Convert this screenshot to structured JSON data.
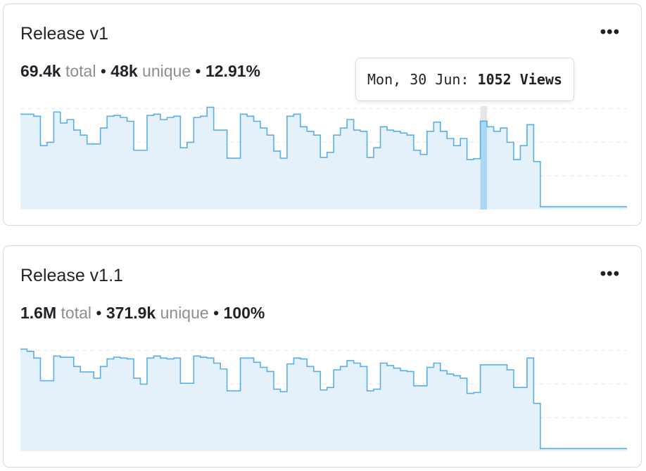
{
  "cards": [
    {
      "title": "Release v1",
      "stats": [
        {
          "value": "69.4k",
          "label": "total"
        },
        {
          "value": "48k",
          "label": "unique"
        },
        {
          "value": "12.91%"
        }
      ],
      "chart_data": {
        "type": "step-area",
        "color": "#5aaee8",
        "values": [
          1134,
          1134,
          1110,
          760,
          800,
          1160,
          1030,
          1070,
          945,
          885,
          780,
          780,
          970,
          1110,
          1120,
          1095,
          1050,
          705,
          705,
          1120,
          1134,
          1070,
          1095,
          1110,
          735,
          800,
          1095,
          1110,
          1217,
          945,
          945,
          610,
          610,
          1134,
          1110,
          1050,
          970,
          885,
          695,
          610,
          1110,
          1134,
          985,
          930,
          885,
          620,
          680,
          885,
          970,
          1070,
          945,
          930,
          620,
          735,
          985,
          945,
          930,
          910,
          885,
          705,
          655,
          930,
          1040,
          930,
          845,
          760,
          845,
          595,
          605,
          1052,
          985,
          930,
          970,
          800,
          595,
          760,
          1010,
          570,
          33,
          33,
          33,
          33,
          33,
          33,
          33,
          33,
          33,
          33,
          33,
          33,
          33
        ],
        "ylim": [
          0,
          1230
        ],
        "yticks": [
          400,
          800,
          1200
        ],
        "grid": true,
        "tooltip": {
          "date": "Mon, 30 Jun:",
          "value": 1052,
          "value_label": "1052 Views"
        }
      }
    },
    {
      "title": "Release v1.1",
      "stats": [
        {
          "value": "1.6M",
          "label": "total"
        },
        {
          "value": "371.9k",
          "label": "unique"
        },
        {
          "value": "100%"
        }
      ],
      "chart_data": {
        "type": "step-area",
        "color": "#5aaee8",
        "values": [
          1217,
          1190,
          1110,
          840,
          840,
          1134,
          1120,
          1120,
          1010,
          945,
          945,
          870,
          1010,
          1100,
          1120,
          1110,
          1100,
          870,
          800,
          1110,
          1134,
          1110,
          1100,
          1110,
          810,
          810,
          1134,
          1120,
          1110,
          1050,
          980,
          720,
          720,
          1110,
          1110,
          1060,
          1000,
          950,
          740,
          710,
          1040,
          1110,
          1100,
          1010,
          950,
          730,
          760,
          970,
          1010,
          1080,
          1050,
          1010,
          720,
          740,
          1050,
          1020,
          990,
          960,
          950,
          780,
          780,
          1000,
          1050,
          960,
          920,
          900,
          870,
          690,
          700,
          1030,
          1030,
          1030,
          1030,
          970,
          760,
          760,
          1110,
          570,
          33,
          33,
          33,
          33,
          33,
          33,
          33,
          33,
          33,
          33,
          33,
          33,
          33
        ],
        "ylim": [
          0,
          1230
        ],
        "yticks": [
          400,
          800,
          1200
        ],
        "grid": true
      }
    }
  ]
}
